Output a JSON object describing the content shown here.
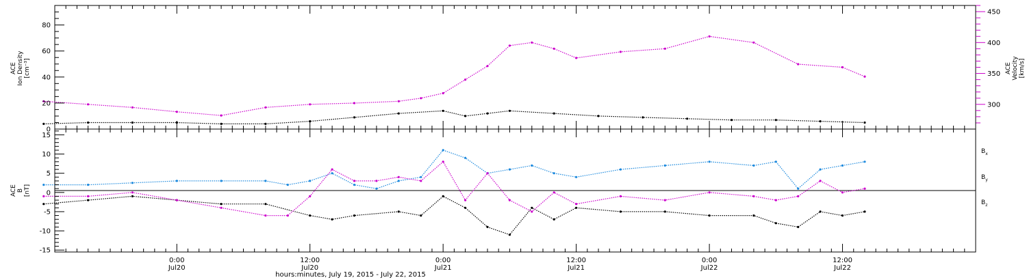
{
  "chart_data": [
    {
      "type": "scatter",
      "panel": "plasma",
      "ylabel_left": [
        "ACE",
        "Ion Density",
        "[cm⁻³]"
      ],
      "ylabel_right": [
        "ACE",
        "Velocity",
        "[km/s]"
      ],
      "ylim_left": [
        0,
        95
      ],
      "ylim_right": [
        260,
        460
      ],
      "yticks_left": [
        0,
        20,
        40,
        60,
        80
      ],
      "yticks_right": [
        300,
        350,
        400,
        450
      ],
      "colors": {
        "density": "#000000",
        "velocity": "#cc00cc"
      },
      "series": [
        {
          "name": "Ion Density",
          "axis": "left",
          "x": [
            -12,
            -8,
            -4,
            0,
            4,
            8,
            12,
            16,
            20,
            24,
            26,
            28,
            30,
            34,
            38,
            42,
            46,
            50,
            54,
            58,
            62
          ],
          "values": [
            4,
            5,
            5,
            5,
            4,
            4,
            6,
            9,
            12,
            14,
            10,
            12,
            14,
            12,
            10,
            9,
            8,
            7,
            7,
            6,
            5
          ]
        },
        {
          "name": "Velocity",
          "axis": "right",
          "x": [
            -12,
            -8,
            -4,
            0,
            4,
            8,
            12,
            16,
            20,
            22,
            24,
            26,
            28,
            30,
            32,
            34,
            36,
            40,
            44,
            48,
            52,
            56,
            60,
            62
          ],
          "values": [
            305,
            300,
            295,
            288,
            282,
            295,
            300,
            302,
            305,
            310,
            318,
            340,
            362,
            395,
            400,
            390,
            375,
            385,
            390,
            410,
            400,
            365,
            360,
            345
          ]
        }
      ]
    },
    {
      "type": "scatter",
      "panel": "magnetic",
      "ylabel_left": [
        "ACE",
        "B",
        "[nT]"
      ],
      "ylim": [
        -15.5,
        16.5
      ],
      "yticks": [
        -15,
        -10,
        -5,
        0,
        5,
        10,
        15
      ],
      "legend": [
        "Bx",
        "By",
        "Bz"
      ],
      "colors": {
        "Bx": "#000000",
        "By": "#1a88dd",
        "Bz": "#cc00cc"
      },
      "series": [
        {
          "name": "Bx",
          "x": [
            -12,
            -8,
            -4,
            0,
            4,
            8,
            12,
            14,
            16,
            20,
            22,
            24,
            26,
            28,
            30,
            32,
            34,
            36,
            40,
            44,
            48,
            52,
            54,
            56,
            58,
            60,
            62
          ],
          "values": [
            -3,
            -2,
            -1,
            -2,
            -3,
            -3,
            -6,
            -7,
            -6,
            -5,
            -6,
            -1,
            -4,
            -9,
            -11,
            -4,
            -7,
            -4,
            -5,
            -5,
            -6,
            -6,
            -8,
            -9,
            -5,
            -6,
            -5
          ]
        },
        {
          "name": "By",
          "x": [
            -12,
            -8,
            -4,
            0,
            4,
            8,
            10,
            12,
            14,
            16,
            18,
            20,
            22,
            24,
            26,
            28,
            30,
            32,
            34,
            36,
            40,
            44,
            48,
            52,
            54,
            56,
            58,
            60,
            62
          ],
          "values": [
            2,
            2,
            2.5,
            3,
            3,
            3,
            2,
            3,
            5,
            2,
            1,
            3,
            4,
            11,
            9,
            5,
            6,
            7,
            5,
            4,
            6,
            7,
            8,
            7,
            8,
            1,
            6,
            7,
            8
          ]
        },
        {
          "name": "Bz",
          "x": [
            -12,
            -8,
            -4,
            0,
            4,
            8,
            10,
            12,
            14,
            16,
            18,
            20,
            22,
            24,
            26,
            28,
            30,
            32,
            34,
            36,
            40,
            44,
            48,
            52,
            54,
            56,
            58,
            60,
            62
          ],
          "values": [
            -1,
            -1,
            0,
            -2,
            -4,
            -6,
            -6,
            -1,
            6,
            3,
            3,
            4,
            3,
            8,
            -2,
            5,
            -2,
            -5,
            0,
            -3,
            -1,
            -2,
            0,
            -1,
            -2,
            -1,
            3,
            0,
            1
          ]
        }
      ]
    }
  ],
  "x_axis": {
    "ticks": [
      {
        "time": "0:00",
        "date": "Jul20"
      },
      {
        "time": "12:00",
        "date": "Jul20"
      },
      {
        "time": "0:00",
        "date": "Jul21"
      },
      {
        "time": "12:00",
        "date": "Jul21"
      },
      {
        "time": "0:00",
        "date": "Jul22"
      },
      {
        "time": "12:00",
        "date": "Jul22"
      }
    ],
    "xlabel": "hours:minutes, July 19, 2015 - July 22, 2015",
    "xlim_hours_from_jul20": [
      -11,
      72
    ]
  },
  "labels": {
    "plasma_left": [
      "ACE",
      "Ion Density",
      "[cm⁻³]"
    ],
    "plasma_right": [
      "ACE",
      "Velocity",
      "[km/s]"
    ],
    "mag_left": [
      "ACE",
      "B",
      "[nT]"
    ],
    "legend_bx": "B",
    "legend_bx_sub": "x",
    "legend_by": "B",
    "legend_by_sub": "y",
    "legend_bz": "B",
    "legend_bz_sub": "z"
  }
}
